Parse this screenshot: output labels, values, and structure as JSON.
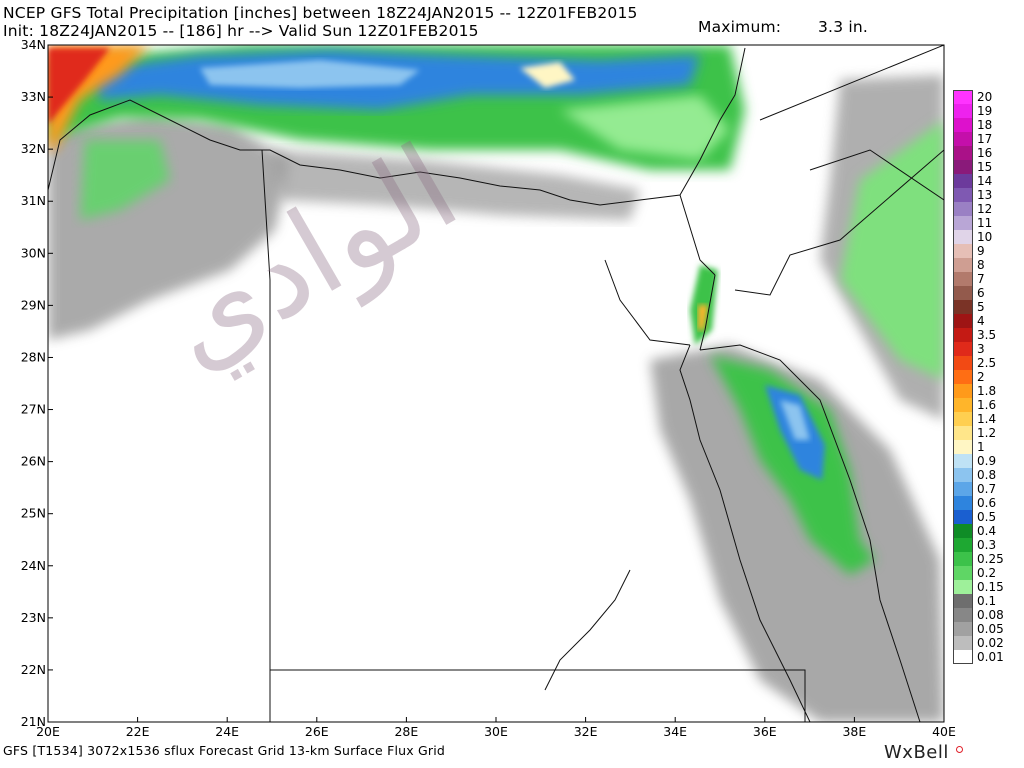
{
  "header": {
    "title": "NCEP GFS Total Precipitation [inches] between 18Z24JAN2015 -- 12Z01FEB2015",
    "subtitle": "Init: 18Z24JAN2015 -- [186] hr --> Valid Sun 12Z01FEB2015",
    "maximum_label": "Maximum:",
    "maximum_value": "3.3 in."
  },
  "footer": {
    "model_info": "GFS [T1534] 3072x1536 sflux Forecast Grid 13-km Surface Flux Grid",
    "brand": "WxBell"
  },
  "map": {
    "lat_range": [
      21,
      34
    ],
    "lon_range": [
      20,
      40
    ],
    "lat_labels": [
      "34N",
      "33N",
      "32N",
      "31N",
      "30N",
      "29N",
      "28N",
      "27N",
      "26N",
      "25N",
      "24N",
      "23N",
      "22N",
      "21N"
    ],
    "lon_labels": [
      "20E",
      "22E",
      "24E",
      "26E",
      "28E",
      "30E",
      "32E",
      "34E",
      "36E",
      "38E",
      "40E"
    ],
    "watermark": "الوادي"
  },
  "legend": {
    "items": [
      {
        "label": "20",
        "color": "#ff33ff"
      },
      {
        "label": "19",
        "color": "#ee22ee"
      },
      {
        "label": "18",
        "color": "#dd11cc"
      },
      {
        "label": "17",
        "color": "#c40faa"
      },
      {
        "label": "16",
        "color": "#aa1188"
      },
      {
        "label": "15",
        "color": "#8a1a7a"
      },
      {
        "label": "14",
        "color": "#6c3a9c"
      },
      {
        "label": "13",
        "color": "#7f59b2"
      },
      {
        "label": "12",
        "color": "#9a80c4"
      },
      {
        "label": "11",
        "color": "#b9a6d6"
      },
      {
        "label": "10",
        "color": "#e0d4e8"
      },
      {
        "label": "9",
        "color": "#e6bfb6"
      },
      {
        "label": "8",
        "color": "#cf9e92"
      },
      {
        "label": "7",
        "color": "#b27a6c"
      },
      {
        "label": "6",
        "color": "#935a4c"
      },
      {
        "label": "5",
        "color": "#7a3326"
      },
      {
        "label": "4",
        "color": "#9e1414"
      },
      {
        "label": "3.5",
        "color": "#c41a14"
      },
      {
        "label": "3",
        "color": "#e02a1a"
      },
      {
        "label": "2.5",
        "color": "#f24a14"
      },
      {
        "label": "2",
        "color": "#ff6e14"
      },
      {
        "label": "1.8",
        "color": "#ff9a1a"
      },
      {
        "label": "1.6",
        "color": "#ffb52a"
      },
      {
        "label": "1.4",
        "color": "#ffcf50"
      },
      {
        "label": "1.2",
        "color": "#ffe68a"
      },
      {
        "label": "1",
        "color": "#fff6c4"
      },
      {
        "label": "0.9",
        "color": "#bfe2f5"
      },
      {
        "label": "0.8",
        "color": "#8cc4ef"
      },
      {
        "label": "0.7",
        "color": "#5ca6e8"
      },
      {
        "label": "0.6",
        "color": "#2e84de"
      },
      {
        "label": "0.5",
        "color": "#1a5fd0"
      },
      {
        "label": "0.4",
        "color": "#0f8c26"
      },
      {
        "label": "0.3",
        "color": "#1ea832"
      },
      {
        "label": "0.25",
        "color": "#3cc24a"
      },
      {
        "label": "0.2",
        "color": "#5fd665"
      },
      {
        "label": "0.15",
        "color": "#9ef09a"
      },
      {
        "label": "0.1",
        "color": "#6e6e6e"
      },
      {
        "label": "0.08",
        "color": "#878787"
      },
      {
        "label": "0.05",
        "color": "#a1a1a1"
      },
      {
        "label": "0.02",
        "color": "#bdbdbd"
      },
      {
        "label": "0.01",
        "color": "#ffffff"
      }
    ]
  }
}
